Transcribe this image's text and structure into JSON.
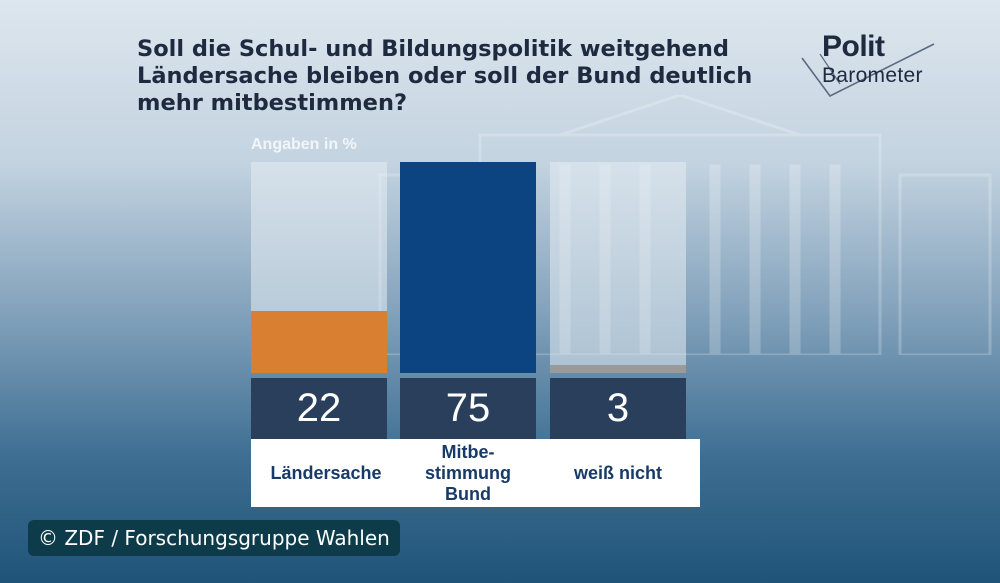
{
  "title": "Soll die Schul- und Bildungspolitik weitgehend Ländersache bleiben oder soll der Bund deutlich mehr mitbestimmen?",
  "logo": {
    "line1": "Polit",
    "line2": "Barometer"
  },
  "credit": "© ZDF / Forschungsgruppe Wahlen",
  "colors": {
    "laendersache": "#d97f31",
    "mitbestimmung": "#0b4481",
    "weiss_nicht": "#9a9a9a",
    "value_box": "#2a3f5c"
  },
  "chart_data": {
    "type": "bar",
    "unit_label": "Angaben in %",
    "ylim": [
      0,
      75
    ],
    "categories": [
      "Ländersache",
      "Mitbe-\nstimmung\nBund",
      "weiß nicht"
    ],
    "values": [
      22,
      75,
      3
    ],
    "value_labels": [
      "22",
      "75",
      "3"
    ],
    "bar_colors": [
      "#d97f31",
      "#0b4481",
      "#9a9a9a"
    ]
  }
}
